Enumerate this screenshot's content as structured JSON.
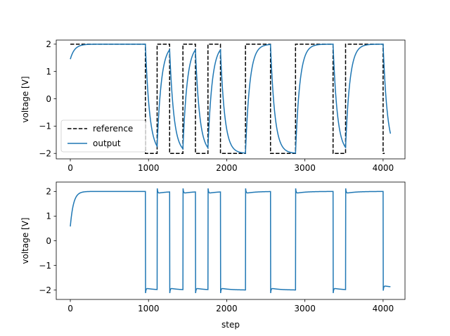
{
  "chart_data": [
    {
      "type": "line",
      "xlabel": "",
      "ylabel": "voltage [V]",
      "xlim": [
        -180,
        4280
      ],
      "ylim": [
        -2.2,
        2.15
      ],
      "xticks": [
        0,
        1000,
        2000,
        3000,
        4000
      ],
      "xtick_labels": [
        "0",
        "1000",
        "2000",
        "3000",
        "4000"
      ],
      "yticks": [
        -2,
        -1,
        0,
        1,
        2
      ],
      "ytick_labels": [
        "−2",
        "−1",
        "0",
        "1",
        "2"
      ],
      "legend": {
        "placement": "lower-left",
        "entries": [
          "reference",
          "output"
        ]
      },
      "series": [
        {
          "name": "reference",
          "style": "dashed",
          "color": "#000000",
          "segments": [
            [
              0,
              960,
              2
            ],
            [
              960,
              1110,
              -2
            ],
            [
              1110,
              1270,
              2
            ],
            [
              1270,
              1440,
              -2
            ],
            [
              1440,
              1600,
              2
            ],
            [
              1600,
              1760,
              -2
            ],
            [
              1760,
              1920,
              2
            ],
            [
              1920,
              2240,
              -2
            ],
            [
              2240,
              2560,
              2
            ],
            [
              2560,
              2880,
              -2
            ],
            [
              2880,
              3360,
              2
            ],
            [
              3360,
              3520,
              -2
            ],
            [
              3520,
              4000,
              2
            ],
            [
              4000,
              4020,
              -2
            ]
          ]
        },
        {
          "name": "output",
          "color": "#1f77b4",
          "start": [
            0,
            1.45
          ],
          "segments": [
            [
              0,
              960,
              2
            ],
            [
              960,
              1110,
              -2
            ],
            [
              1110,
              1270,
              2
            ],
            [
              1270,
              1440,
              -2
            ],
            [
              1440,
              1600,
              2
            ],
            [
              1600,
              1760,
              -2
            ],
            [
              1760,
              1920,
              2
            ],
            [
              1920,
              2240,
              -2
            ],
            [
              2240,
              2560,
              2
            ],
            [
              2560,
              2880,
              -2
            ],
            [
              2880,
              3360,
              2
            ],
            [
              3360,
              3520,
              -2
            ],
            [
              3520,
              4000,
              2
            ],
            [
              4000,
              4095,
              -2
            ]
          ]
        }
      ]
    },
    {
      "type": "line",
      "xlabel": "step",
      "ylabel": "voltage [V]",
      "xlim": [
        -180,
        4280
      ],
      "ylim": [
        -2.38,
        2.38
      ],
      "xticks": [
        0,
        1000,
        2000,
        3000,
        4000
      ],
      "xtick_labels": [
        "0",
        "1000",
        "2000",
        "3000",
        "4000"
      ],
      "yticks": [
        -2,
        -1,
        0,
        1,
        2
      ],
      "ytick_labels": [
        "−2",
        "−1",
        "0",
        "1",
        "2"
      ],
      "series": [
        {
          "color": "#1f77b4",
          "start": [
            0,
            0.58
          ],
          "segments": [
            [
              0,
              960,
              2
            ],
            [
              960,
              1110,
              -2
            ],
            [
              1110,
              1270,
              2
            ],
            [
              1270,
              1440,
              -2
            ],
            [
              1440,
              1600,
              2
            ],
            [
              1600,
              1760,
              -2
            ],
            [
              1760,
              1920,
              2
            ],
            [
              1920,
              2240,
              -2
            ],
            [
              2240,
              2560,
              2
            ],
            [
              2560,
              2880,
              -2
            ],
            [
              2880,
              3360,
              2
            ],
            [
              3360,
              3520,
              -2
            ],
            [
              3520,
              4000,
              2
            ],
            [
              4000,
              4095,
              -1.9
            ]
          ]
        }
      ]
    }
  ]
}
